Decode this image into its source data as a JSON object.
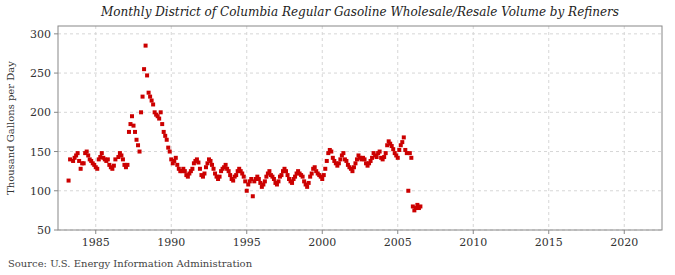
{
  "chart_data": {
    "type": "scatter",
    "title": "Monthly District of Columbia Regular Gasoline Wholesale/Resale Volume by Refiners",
    "y_label": "Thousand Gallons per Day",
    "annotations": [
      "Source: U.S. Energy Information Administration"
    ],
    "color": "#cc0000",
    "marker": "square",
    "grid": true,
    "xlim": [
      1982.5,
      2022.5
    ],
    "ylim": [
      50,
      310
    ],
    "xticks": [
      1985,
      1990,
      1995,
      2000,
      2005,
      2010,
      2015,
      2020
    ],
    "yticks": [
      50,
      100,
      150,
      200,
      250,
      300
    ],
    "x": [
      1983.2,
      1983.3,
      1983.5,
      1983.6,
      1983.7,
      1983.8,
      1983.9,
      1984.0,
      1984.1,
      1984.2,
      1984.3,
      1984.4,
      1984.5,
      1984.6,
      1984.7,
      1984.8,
      1984.9,
      1985.0,
      1985.1,
      1985.2,
      1985.3,
      1985.4,
      1985.5,
      1985.6,
      1985.7,
      1985.8,
      1985.9,
      1986.0,
      1986.1,
      1986.2,
      1986.3,
      1986.5,
      1986.6,
      1986.7,
      1986.8,
      1986.9,
      1987.0,
      1987.1,
      1987.2,
      1987.3,
      1987.4,
      1987.5,
      1987.6,
      1987.7,
      1987.8,
      1987.9,
      1988.0,
      1988.1,
      1988.2,
      1988.3,
      1988.4,
      1988.5,
      1988.6,
      1988.7,
      1988.8,
      1988.9,
      1989.0,
      1989.1,
      1989.2,
      1989.3,
      1989.4,
      1989.5,
      1989.6,
      1989.7,
      1989.8,
      1989.9,
      1990.0,
      1990.1,
      1990.2,
      1990.3,
      1990.4,
      1990.5,
      1990.6,
      1990.7,
      1990.8,
      1990.9,
      1991.0,
      1991.1,
      1991.2,
      1991.3,
      1991.4,
      1991.5,
      1991.6,
      1991.7,
      1991.8,
      1991.9,
      1992.0,
      1992.1,
      1992.2,
      1992.3,
      1992.4,
      1992.5,
      1992.6,
      1992.7,
      1992.8,
      1992.9,
      1993.0,
      1993.1,
      1993.2,
      1993.3,
      1993.4,
      1993.5,
      1993.6,
      1993.7,
      1993.8,
      1993.9,
      1994.0,
      1994.1,
      1994.2,
      1994.3,
      1994.4,
      1994.5,
      1994.6,
      1994.7,
      1994.8,
      1994.9,
      1995.0,
      1995.1,
      1995.2,
      1995.3,
      1995.4,
      1995.5,
      1995.6,
      1995.7,
      1995.8,
      1995.9,
      1996.0,
      1996.1,
      1996.2,
      1996.3,
      1996.4,
      1996.5,
      1996.6,
      1996.7,
      1996.8,
      1996.9,
      1997.0,
      1997.1,
      1997.2,
      1997.3,
      1997.4,
      1997.5,
      1997.6,
      1997.7,
      1997.8,
      1997.9,
      1998.0,
      1998.1,
      1998.2,
      1998.3,
      1998.4,
      1998.5,
      1998.6,
      1998.7,
      1998.8,
      1998.9,
      1999.0,
      1999.1,
      1999.2,
      1999.3,
      1999.4,
      1999.5,
      1999.6,
      1999.7,
      1999.8,
      1999.9,
      2000.0,
      2000.1,
      2000.2,
      2000.3,
      2000.4,
      2000.5,
      2000.6,
      2000.7,
      2000.8,
      2000.9,
      2001.0,
      2001.1,
      2001.2,
      2001.3,
      2001.4,
      2001.5,
      2001.6,
      2001.7,
      2001.8,
      2001.9,
      2002.0,
      2002.1,
      2002.2,
      2002.3,
      2002.4,
      2002.5,
      2002.6,
      2002.7,
      2002.8,
      2002.9,
      2003.0,
      2003.1,
      2003.2,
      2003.3,
      2003.4,
      2003.5,
      2003.6,
      2003.7,
      2003.8,
      2003.9,
      2004.0,
      2004.1,
      2004.2,
      2004.3,
      2004.4,
      2004.5,
      2004.6,
      2004.7,
      2004.8,
      2004.9,
      2005.0,
      2005.1,
      2005.2,
      2005.3,
      2005.4,
      2005.5,
      2005.6,
      2005.7,
      2005.8,
      2005.9,
      2006.0,
      2006.1,
      2006.2,
      2006.3,
      2006.4,
      2006.5
    ],
    "values": [
      113,
      140,
      138,
      142,
      145,
      148,
      138,
      128,
      135,
      135,
      148,
      150,
      145,
      140,
      138,
      135,
      133,
      130,
      128,
      140,
      143,
      148,
      142,
      140,
      138,
      140,
      133,
      130,
      128,
      132,
      140,
      143,
      148,
      145,
      140,
      133,
      130,
      133,
      175,
      185,
      195,
      183,
      175,
      165,
      158,
      150,
      200,
      220,
      255,
      285,
      247,
      225,
      220,
      215,
      210,
      200,
      197,
      195,
      192,
      200,
      185,
      175,
      170,
      165,
      155,
      150,
      140,
      135,
      138,
      142,
      133,
      128,
      125,
      125,
      128,
      125,
      120,
      118,
      122,
      125,
      128,
      135,
      138,
      140,
      136,
      128,
      120,
      118,
      122,
      130,
      135,
      140,
      138,
      133,
      128,
      122,
      118,
      115,
      118,
      125,
      128,
      130,
      133,
      128,
      125,
      120,
      115,
      113,
      118,
      120,
      125,
      128,
      125,
      122,
      118,
      112,
      100,
      108,
      112,
      115,
      93,
      112,
      115,
      118,
      115,
      110,
      105,
      108,
      112,
      118,
      122,
      125,
      120,
      118,
      115,
      110,
      108,
      112,
      118,
      120,
      125,
      128,
      125,
      120,
      115,
      112,
      110,
      115,
      118,
      122,
      125,
      122,
      120,
      118,
      112,
      108,
      105,
      110,
      118,
      122,
      128,
      130,
      125,
      122,
      120,
      118,
      115,
      120,
      128,
      138,
      148,
      152,
      150,
      142,
      138,
      135,
      132,
      135,
      140,
      145,
      148,
      140,
      138,
      133,
      130,
      128,
      125,
      130,
      135,
      140,
      145,
      142,
      140,
      142,
      140,
      135,
      132,
      135,
      138,
      142,
      148,
      145,
      143,
      148,
      150,
      142,
      140,
      143,
      148,
      158,
      163,
      160,
      157,
      153,
      148,
      145,
      142,
      152,
      158,
      162,
      168,
      152,
      148,
      100,
      148,
      142,
      80,
      75,
      78,
      82,
      78,
      80
    ]
  }
}
